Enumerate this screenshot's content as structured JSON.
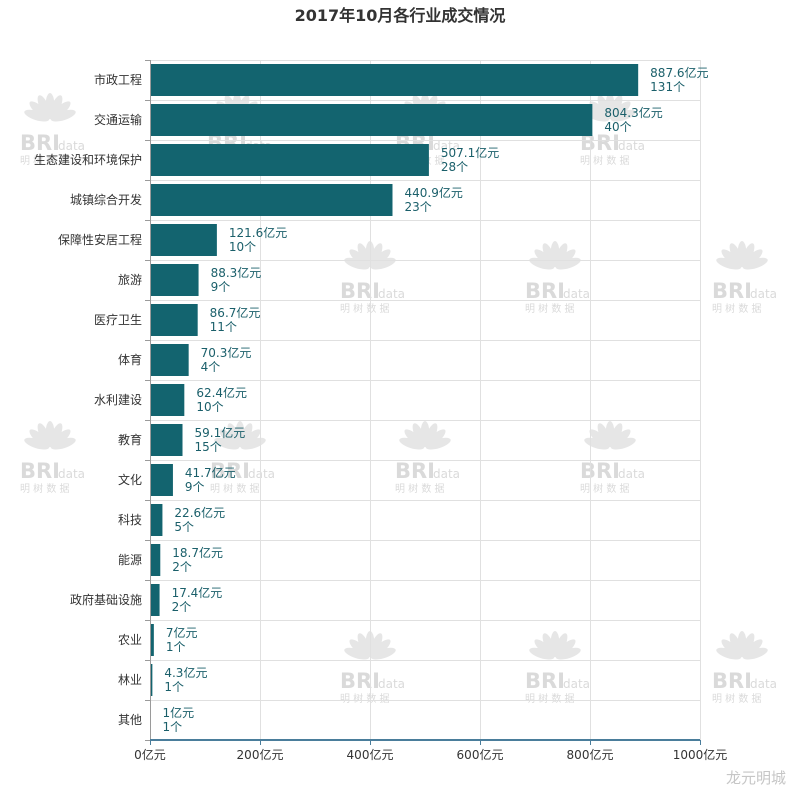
{
  "chart_data": {
    "type": "bar",
    "orientation": "horizontal",
    "title": "2017年10月各行业成交情况",
    "categories": [
      "市政工程",
      "交通运输",
      "生态建设和环境保护",
      "城镇综合开发",
      "保障性安居工程",
      "旅游",
      "医疗卫生",
      "体育",
      "水利建设",
      "教育",
      "文化",
      "科技",
      "能源",
      "政府基础设施",
      "农业",
      "林业",
      "其他"
    ],
    "values": [
      887.6,
      804.3,
      507.1,
      440.9,
      121.6,
      88.3,
      86.7,
      70.3,
      62.4,
      59.1,
      41.7,
      22.6,
      18.7,
      17.4,
      7,
      4.3,
      1
    ],
    "value_unit": "亿元",
    "counts": [
      131,
      40,
      28,
      23,
      10,
      9,
      11,
      4,
      10,
      15,
      9,
      5,
      2,
      2,
      1,
      1,
      1
    ],
    "count_unit": "个",
    "x_ticks": [
      0,
      200,
      400,
      600,
      800,
      1000
    ],
    "xlim": [
      0,
      1000
    ],
    "grid": true,
    "colors": {
      "bar": "#13646f",
      "data_label": "#1a5f6a",
      "x_axis": "#4a7d9b"
    }
  },
  "watermark": {
    "brand_main": "BRI",
    "brand_sub": "data",
    "brand_cn": "明 树 数 据",
    "corner_text": "龙元明城"
  }
}
